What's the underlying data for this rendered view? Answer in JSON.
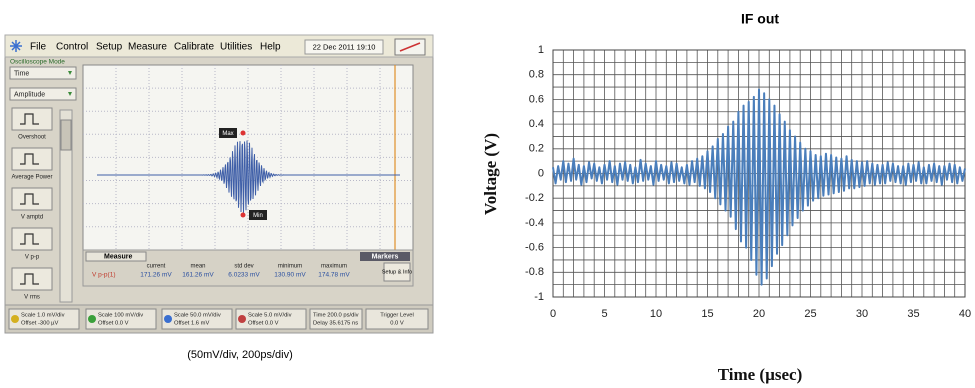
{
  "scope": {
    "menu": [
      "File",
      "Control",
      "Setup",
      "Measure",
      "Calibrate",
      "Utilities",
      "Help"
    ],
    "datetime": "22 Dec 2011  19:10",
    "mode": "Oscilloscope Mode",
    "selectors": [
      "Time",
      "Amplitude"
    ],
    "buttons": [
      "Overshoot",
      "Average Power",
      "V amptd",
      "V p-p",
      "V rms"
    ],
    "markers": [
      "Max",
      "Min"
    ],
    "measure_title": "Measure",
    "markers_title": "Markers",
    "columns": [
      "current",
      "mean",
      "std dev",
      "minimum",
      "maximum"
    ],
    "row": [
      "V p-p(1)",
      "171.26 mV",
      "161.26 mV",
      "6.0233 mV",
      "130.90 mV",
      "174.78 mV"
    ],
    "setup": "Setup & Info",
    "channels": [
      {
        "scale": "Scale 1.0 mV/div",
        "offset": "Offset -300 µV"
      },
      {
        "scale": "Scale 100 mV/div",
        "offset": "Offset 0.0 V"
      },
      {
        "scale": "Scale 50.0 mV/div",
        "offset": "Offset 1.6 mV"
      },
      {
        "scale": "Scale 5.0 mV/div",
        "offset": "Offset 0.0 V"
      }
    ],
    "time": {
      "scale": "Time  200.0 ps/div",
      "delay": "Delay 35.6175 ns"
    },
    "trigger": {
      "label": "Trigger Level",
      "value": "0.0 V"
    }
  },
  "caption": "(50mV/div, 200ps/div)",
  "chart_data": {
    "type": "line",
    "title": "IF out",
    "x_label": "Time (µsec)",
    "y_label": "Voltage (V)",
    "color": "#4a7ebb",
    "grid": true,
    "xlim": [
      0,
      40
    ],
    "xticks": [
      0,
      5,
      10,
      15,
      20,
      25,
      30,
      35,
      40
    ],
    "ylim": [
      -1,
      1
    ],
    "yticks": [
      -1,
      -0.8,
      -0.6,
      -0.4,
      -0.2,
      0,
      0.2,
      0.4,
      0.6,
      0.8,
      1
    ],
    "x": [
      0,
      0.25,
      0.5,
      0.75,
      1,
      1.25,
      1.5,
      1.75,
      2,
      2.25,
      2.5,
      2.75,
      3,
      3.25,
      3.5,
      3.75,
      4,
      4.25,
      4.5,
      4.75,
      5,
      5.25,
      5.5,
      5.75,
      6,
      6.25,
      6.5,
      6.75,
      7,
      7.25,
      7.5,
      7.75,
      8,
      8.25,
      8.5,
      8.75,
      9,
      9.25,
      9.5,
      9.75,
      10,
      10.25,
      10.5,
      10.75,
      11,
      11.25,
      11.5,
      11.75,
      12,
      12.25,
      12.5,
      12.75,
      13,
      13.25,
      13.5,
      13.75,
      14,
      14.25,
      14.5,
      14.75,
      15,
      15.25,
      15.5,
      15.75,
      16,
      16.25,
      16.5,
      16.75,
      17,
      17.25,
      17.5,
      17.75,
      18,
      18.25,
      18.5,
      18.75,
      19,
      19.25,
      19.5,
      19.75,
      20,
      20.25,
      20.5,
      20.75,
      21,
      21.25,
      21.5,
      21.75,
      22,
      22.25,
      22.5,
      22.75,
      23,
      23.25,
      23.5,
      23.75,
      24,
      24.25,
      24.5,
      24.75,
      25,
      25.25,
      25.5,
      25.75,
      26,
      26.25,
      26.5,
      26.75,
      27,
      27.25,
      27.5,
      27.75,
      28,
      28.25,
      28.5,
      28.75,
      29,
      29.25,
      29.5,
      29.75,
      30,
      30.25,
      30.5,
      30.75,
      31,
      31.25,
      31.5,
      31.75,
      32,
      32.25,
      32.5,
      32.75,
      33,
      33.25,
      33.5,
      33.75,
      34,
      34.25,
      34.5,
      34.75,
      35,
      35.25,
      35.5,
      35.75,
      36,
      36.25,
      36.5,
      36.75,
      37,
      37.25,
      37.5,
      37.75,
      38,
      38.25,
      38.5,
      38.75,
      39,
      39.25,
      39.5,
      39.75,
      40
    ],
    "values": [
      0.05,
      -0.08,
      0.06,
      -0.05,
      0.1,
      -0.07,
      0.08,
      -0.06,
      0.12,
      -0.05,
      0.07,
      -0.09,
      0.06,
      -0.07,
      0.09,
      -0.04,
      0.08,
      -0.06,
      0.05,
      -0.08,
      0.07,
      -0.05,
      0.1,
      -0.07,
      0.06,
      -0.09,
      0.08,
      -0.05,
      0.09,
      -0.06,
      0.07,
      -0.08,
      0.05,
      -0.07,
      0.11,
      -0.06,
      0.08,
      -0.05,
      0.06,
      -0.09,
      0.1,
      -0.06,
      0.07,
      -0.05,
      0.06,
      -0.08,
      0.09,
      -0.07,
      0.08,
      -0.06,
      0.05,
      -0.08,
      0.07,
      -0.09,
      0.1,
      -0.07,
      0.12,
      -0.1,
      0.14,
      -0.12,
      0.18,
      -0.15,
      0.22,
      -0.2,
      0.28,
      -0.25,
      0.32,
      -0.3,
      0.38,
      -0.35,
      0.42,
      -0.45,
      0.5,
      -0.55,
      0.55,
      -0.6,
      0.58,
      -0.7,
      0.62,
      -0.82,
      0.68,
      -0.9,
      0.65,
      -0.85,
      0.6,
      -0.75,
      0.55,
      -0.65,
      0.48,
      -0.58,
      0.42,
      -0.5,
      0.35,
      -0.42,
      0.3,
      -0.36,
      0.25,
      -0.3,
      0.2,
      -0.26,
      0.18,
      -0.22,
      0.15,
      -0.2,
      0.14,
      -0.18,
      0.16,
      -0.17,
      0.15,
      -0.16,
      0.13,
      -0.15,
      0.12,
      -0.14,
      0.14,
      -0.12,
      0.11,
      -0.12,
      0.1,
      -0.11,
      0.09,
      -0.1,
      0.1,
      -0.08,
      0.08,
      -0.09,
      0.07,
      -0.08,
      0.07,
      -0.08,
      0.09,
      -0.06,
      0.08,
      -0.07,
      0.06,
      -0.08,
      0.06,
      -0.09,
      0.08,
      -0.07,
      0.07,
      -0.06,
      0.09,
      -0.08,
      0.05,
      -0.08,
      0.07,
      -0.06,
      0.08,
      -0.07,
      0.06,
      -0.09,
      0.06,
      -0.05,
      0.08,
      -0.07,
      0.07,
      -0.08,
      0.05,
      -0.06,
      0.04
    ]
  }
}
